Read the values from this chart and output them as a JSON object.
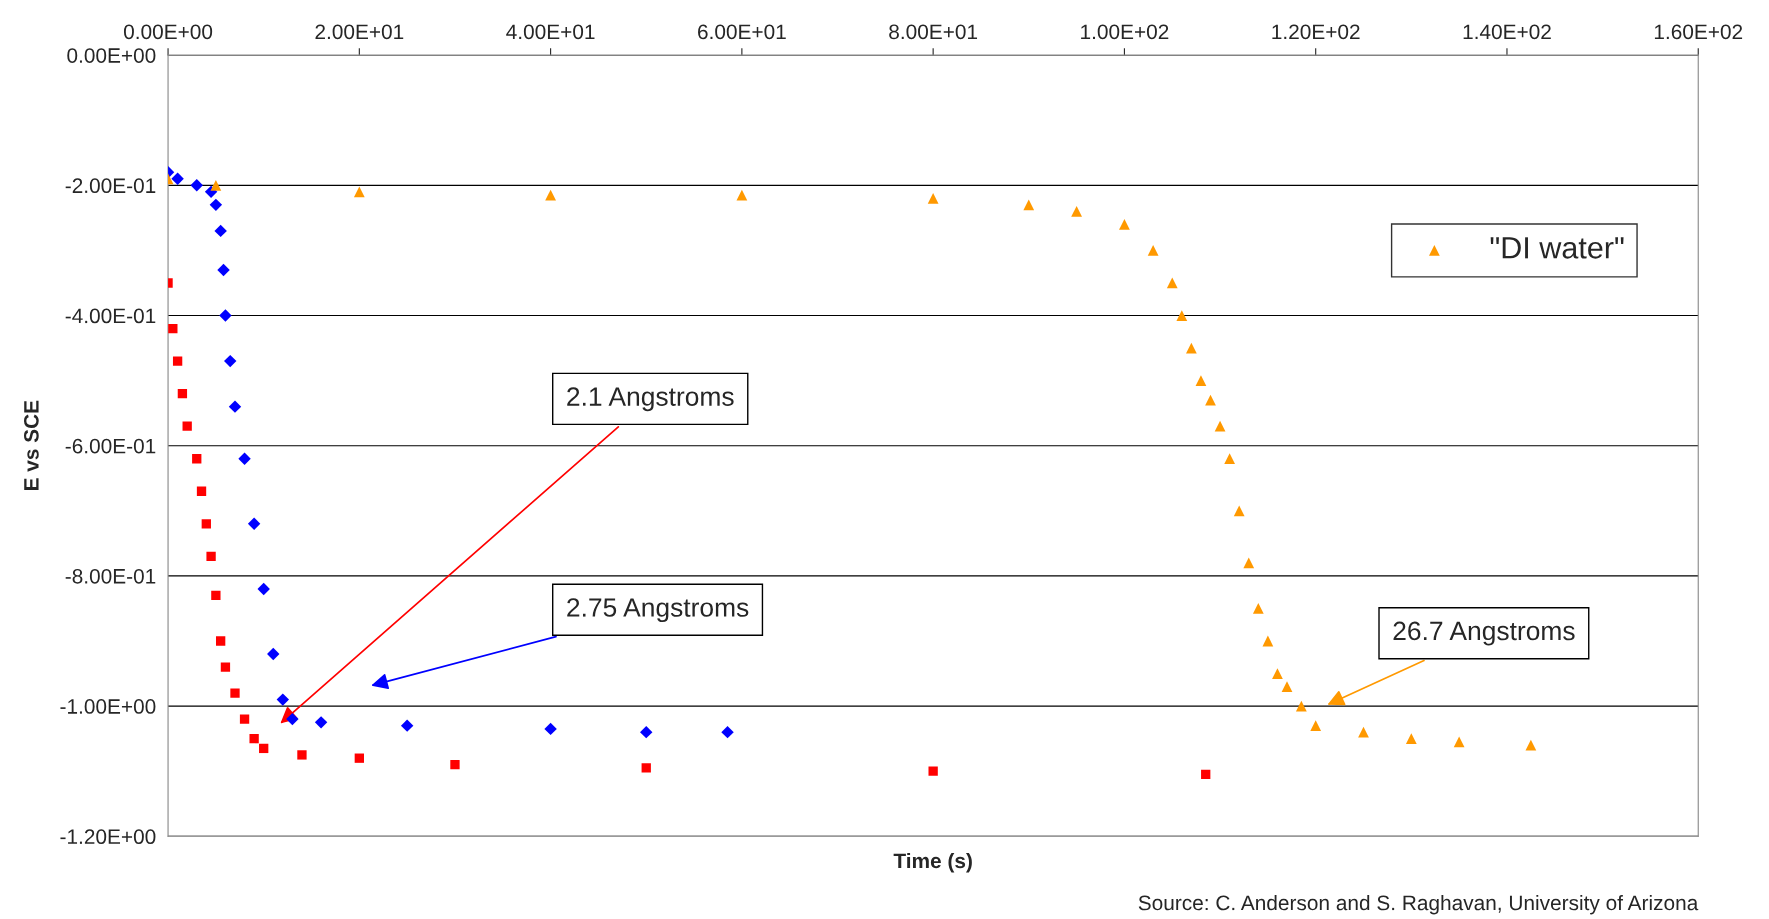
{
  "chart_data": {
    "type": "scatter",
    "xlabel": "Time (s)",
    "ylabel": "E vs SCE",
    "xlim": [
      0,
      160
    ],
    "ylim": [
      -1.2,
      0
    ],
    "xticks": [
      {
        "value": 0,
        "label": "0.00E+00"
      },
      {
        "value": 20,
        "label": "2.00E+01"
      },
      {
        "value": 40,
        "label": "4.00E+01"
      },
      {
        "value": 60,
        "label": "6.00E+01"
      },
      {
        "value": 80,
        "label": "8.00E+01"
      },
      {
        "value": 100,
        "label": "1.00E+02"
      },
      {
        "value": 120,
        "label": "1.20E+02"
      },
      {
        "value": 140,
        "label": "1.40E+02"
      },
      {
        "value": 160,
        "label": "1.60E+02"
      }
    ],
    "yticks": [
      {
        "value": 0,
        "label": "0.00E+00"
      },
      {
        "value": -0.2,
        "label": "-2.00E-01"
      },
      {
        "value": -0.4,
        "label": "-4.00E-01"
      },
      {
        "value": -0.6,
        "label": "-6.00E-01"
      },
      {
        "value": -0.8,
        "label": "-8.00E-01"
      },
      {
        "value": -1.0,
        "label": "-1.00E+00"
      },
      {
        "value": -1.2,
        "label": "-1.20E+00"
      }
    ],
    "grid": "y",
    "legend": "right",
    "series": [
      {
        "color": "#0000ff",
        "marker": "diamond",
        "x": [
          0,
          1,
          3,
          4.5,
          5,
          5.5,
          5.8,
          6,
          6.5,
          7,
          8,
          9,
          10,
          11,
          12,
          13,
          16,
          25,
          40,
          50,
          58.5
        ],
        "values": [
          -0.18,
          -0.19,
          -0.2,
          -0.21,
          -0.23,
          -0.27,
          -0.33,
          -0.4,
          -0.47,
          -0.54,
          -0.62,
          -0.72,
          -0.82,
          -0.92,
          -0.99,
          -1.02,
          -1.025,
          -1.03,
          -1.035,
          -1.04,
          -1.04
        ]
      },
      {
        "color": "#ff0000",
        "marker": "square",
        "x": [
          0,
          0.5,
          1,
          1.5,
          2,
          3,
          3.5,
          4,
          4.5,
          5,
          5.5,
          6,
          7,
          8,
          9,
          10,
          14,
          20,
          30,
          50,
          80,
          108.5
        ],
        "values": [
          -0.35,
          -0.42,
          -0.47,
          -0.52,
          -0.57,
          -0.62,
          -0.67,
          -0.72,
          -0.77,
          -0.83,
          -0.9,
          -0.94,
          -0.98,
          -1.02,
          -1.05,
          -1.065,
          -1.075,
          -1.08,
          -1.09,
          -1.095,
          -1.1,
          -1.105
        ]
      },
      {
        "name": "\"DI water\"",
        "color": "#ff9900",
        "marker": "triangle",
        "x": [
          0,
          5,
          20,
          40,
          60,
          80,
          90,
          95,
          100,
          103,
          105,
          106,
          107,
          108,
          109,
          110,
          111,
          112,
          113,
          114,
          115,
          116,
          117,
          118.5,
          120,
          125,
          130,
          135,
          142.5
        ],
        "values": [
          -0.19,
          -0.2,
          -0.21,
          -0.215,
          -0.215,
          -0.22,
          -0.23,
          -0.24,
          -0.26,
          -0.3,
          -0.35,
          -0.4,
          -0.45,
          -0.5,
          -0.53,
          -0.57,
          -0.62,
          -0.7,
          -0.78,
          -0.85,
          -0.9,
          -0.95,
          -0.97,
          -1.0,
          -1.03,
          -1.04,
          -1.05,
          -1.055,
          -1.06
        ]
      }
    ],
    "annotations": [
      "2.1 Angstroms",
      "2.75 Angstroms",
      "26.7 Angstroms",
      "Source: C. Anderson and S. Raghavan, University of Arizona"
    ]
  }
}
